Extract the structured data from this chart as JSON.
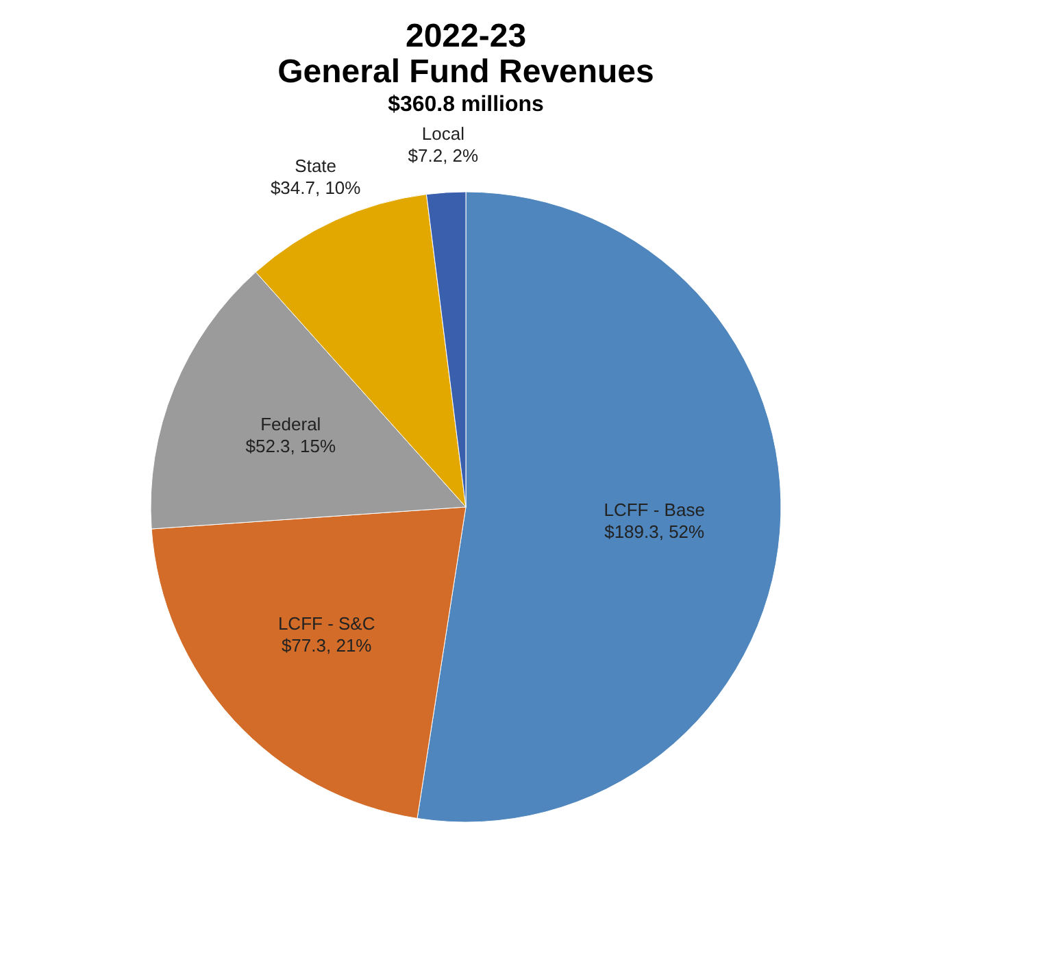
{
  "chart_data": {
    "type": "pie",
    "title": "2022-23 General Fund Revenues",
    "subtitle": "$360.8 millions",
    "categories": [
      "LCFF - Base",
      "LCFF - S&C",
      "Federal",
      "State",
      "Local"
    ],
    "values": [
      189.3,
      77.3,
      52.3,
      34.7,
      7.2
    ],
    "value_labels": [
      "$189.3, 52%",
      "$77.3, 21%",
      "$52.3, 15%",
      "$34.7, 10%",
      "$7.2, 2%"
    ],
    "colors": [
      "#4f86bd",
      "#d26c28",
      "#9b9b9b",
      "#e2a800",
      "#3a5fad"
    ],
    "legend": false
  }
}
